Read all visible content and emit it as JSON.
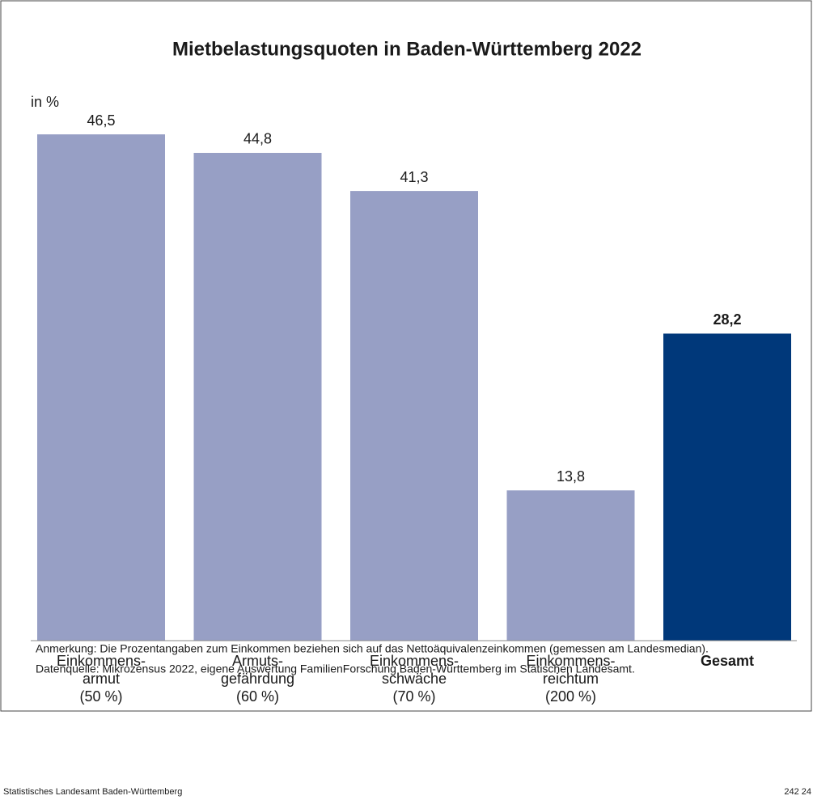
{
  "chart_data": {
    "type": "bar",
    "title": "Mietbelastungsquoten in Baden-Württemberg 2022",
    "y_label": "in %",
    "categories": [
      "Einkommens-\narmut\n(50 %)",
      "Armuts-\ngefährdung\n(60 %)",
      "Einkommens-\nschwäche\n(70 %)",
      "Einkommens-\nreichtum\n(200 %)",
      "Gesamt"
    ],
    "values": [
      46.5,
      44.8,
      41.3,
      13.8,
      28.2
    ],
    "value_labels": [
      "46,5",
      "44,8",
      "41,3",
      "13,8",
      "28,2"
    ],
    "colors": [
      "#979fc5",
      "#979fc5",
      "#979fc5",
      "#979fc5",
      "#00387a"
    ],
    "emphasis": [
      false,
      false,
      false,
      false,
      true
    ],
    "ylim": [
      0,
      50
    ],
    "notes": [
      "Anmerkung: Die Prozentangaben zum Einkommen beziehen sich auf das Nettoäquivalenzeinkommen (gemessen am Landesmedian).",
      "Datenquelle: Mikrozensus 2022, eigene Auswertung FamilienForschung Baden-Württemberg im Statischen Landesamt."
    ],
    "footer": {
      "left": "Statistisches Landesamt Baden-Württemberg",
      "right": "242 24"
    }
  }
}
